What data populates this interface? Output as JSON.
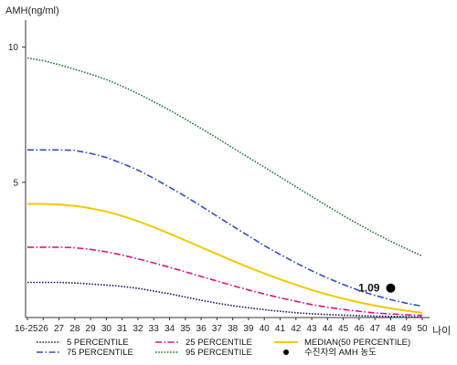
{
  "chart_data": {
    "type": "line",
    "ylabel": "AMH(ng/ml)",
    "xlabel": "나이",
    "ylim": [
      0,
      11
    ],
    "y_ticks": [
      5,
      10
    ],
    "grid": false,
    "x": [
      "16-25",
      "26",
      "27",
      "28",
      "29",
      "30",
      "31",
      "32",
      "33",
      "34",
      "35",
      "36",
      "37",
      "38",
      "39",
      "40",
      "41",
      "42",
      "43",
      "44",
      "45",
      "46",
      "47",
      "48",
      "49",
      "50"
    ],
    "series": [
      {
        "name": "5 PERCENTILE",
        "color": "#1a1a6e",
        "style": "dotted",
        "values": [
          1.3,
          1.3,
          1.3,
          1.28,
          1.24,
          1.2,
          1.15,
          1.08,
          0.98,
          0.88,
          0.76,
          0.64,
          0.53,
          0.44,
          0.36,
          0.29,
          0.23,
          0.18,
          0.14,
          0.11,
          0.09,
          0.07,
          0.05,
          0.04,
          0.03,
          0.02
        ]
      },
      {
        "name": "25 PERCENTILE",
        "color": "#e0107f",
        "style": "dashdot",
        "values": [
          2.6,
          2.6,
          2.6,
          2.58,
          2.52,
          2.43,
          2.31,
          2.17,
          2.02,
          1.86,
          1.69,
          1.52,
          1.35,
          1.18,
          1.02,
          0.87,
          0.73,
          0.6,
          0.48,
          0.38,
          0.3,
          0.23,
          0.17,
          0.13,
          0.1,
          0.08
        ]
      },
      {
        "name": "MEDIAN(50 PERCENTILE)",
        "color": "#f2c800",
        "style": "solid",
        "values": [
          4.2,
          4.2,
          4.18,
          4.13,
          4.04,
          3.92,
          3.76,
          3.56,
          3.34,
          3.1,
          2.85,
          2.6,
          2.35,
          2.1,
          1.86,
          1.63,
          1.41,
          1.21,
          1.02,
          0.85,
          0.7,
          0.56,
          0.44,
          0.34,
          0.25,
          0.18
        ]
      },
      {
        "name": "75 PERCENTILE",
        "color": "#2e4fbd",
        "style": "dashdot",
        "values": [
          6.2,
          6.2,
          6.2,
          6.18,
          6.07,
          5.92,
          5.7,
          5.45,
          5.15,
          4.82,
          4.48,
          4.12,
          3.75,
          3.38,
          3.02,
          2.66,
          2.33,
          2.02,
          1.73,
          1.46,
          1.22,
          1.0,
          0.82,
          0.66,
          0.53,
          0.42
        ]
      },
      {
        "name": "95 PERCENTILE",
        "color": "#1f7a3a",
        "style": "dotted",
        "values": [
          9.6,
          9.5,
          9.35,
          9.18,
          9.0,
          8.8,
          8.55,
          8.28,
          7.98,
          7.67,
          7.34,
          6.99,
          6.64,
          6.28,
          5.92,
          5.56,
          5.2,
          4.84,
          4.48,
          4.12,
          3.77,
          3.44,
          3.12,
          2.82,
          2.54,
          2.28
        ]
      }
    ],
    "marker": {
      "legend_label": "수진자의 AMH 농도",
      "x": "48",
      "value": 1.09,
      "label": "1.09",
      "color": "#000000"
    },
    "legend_position": "bottom"
  }
}
